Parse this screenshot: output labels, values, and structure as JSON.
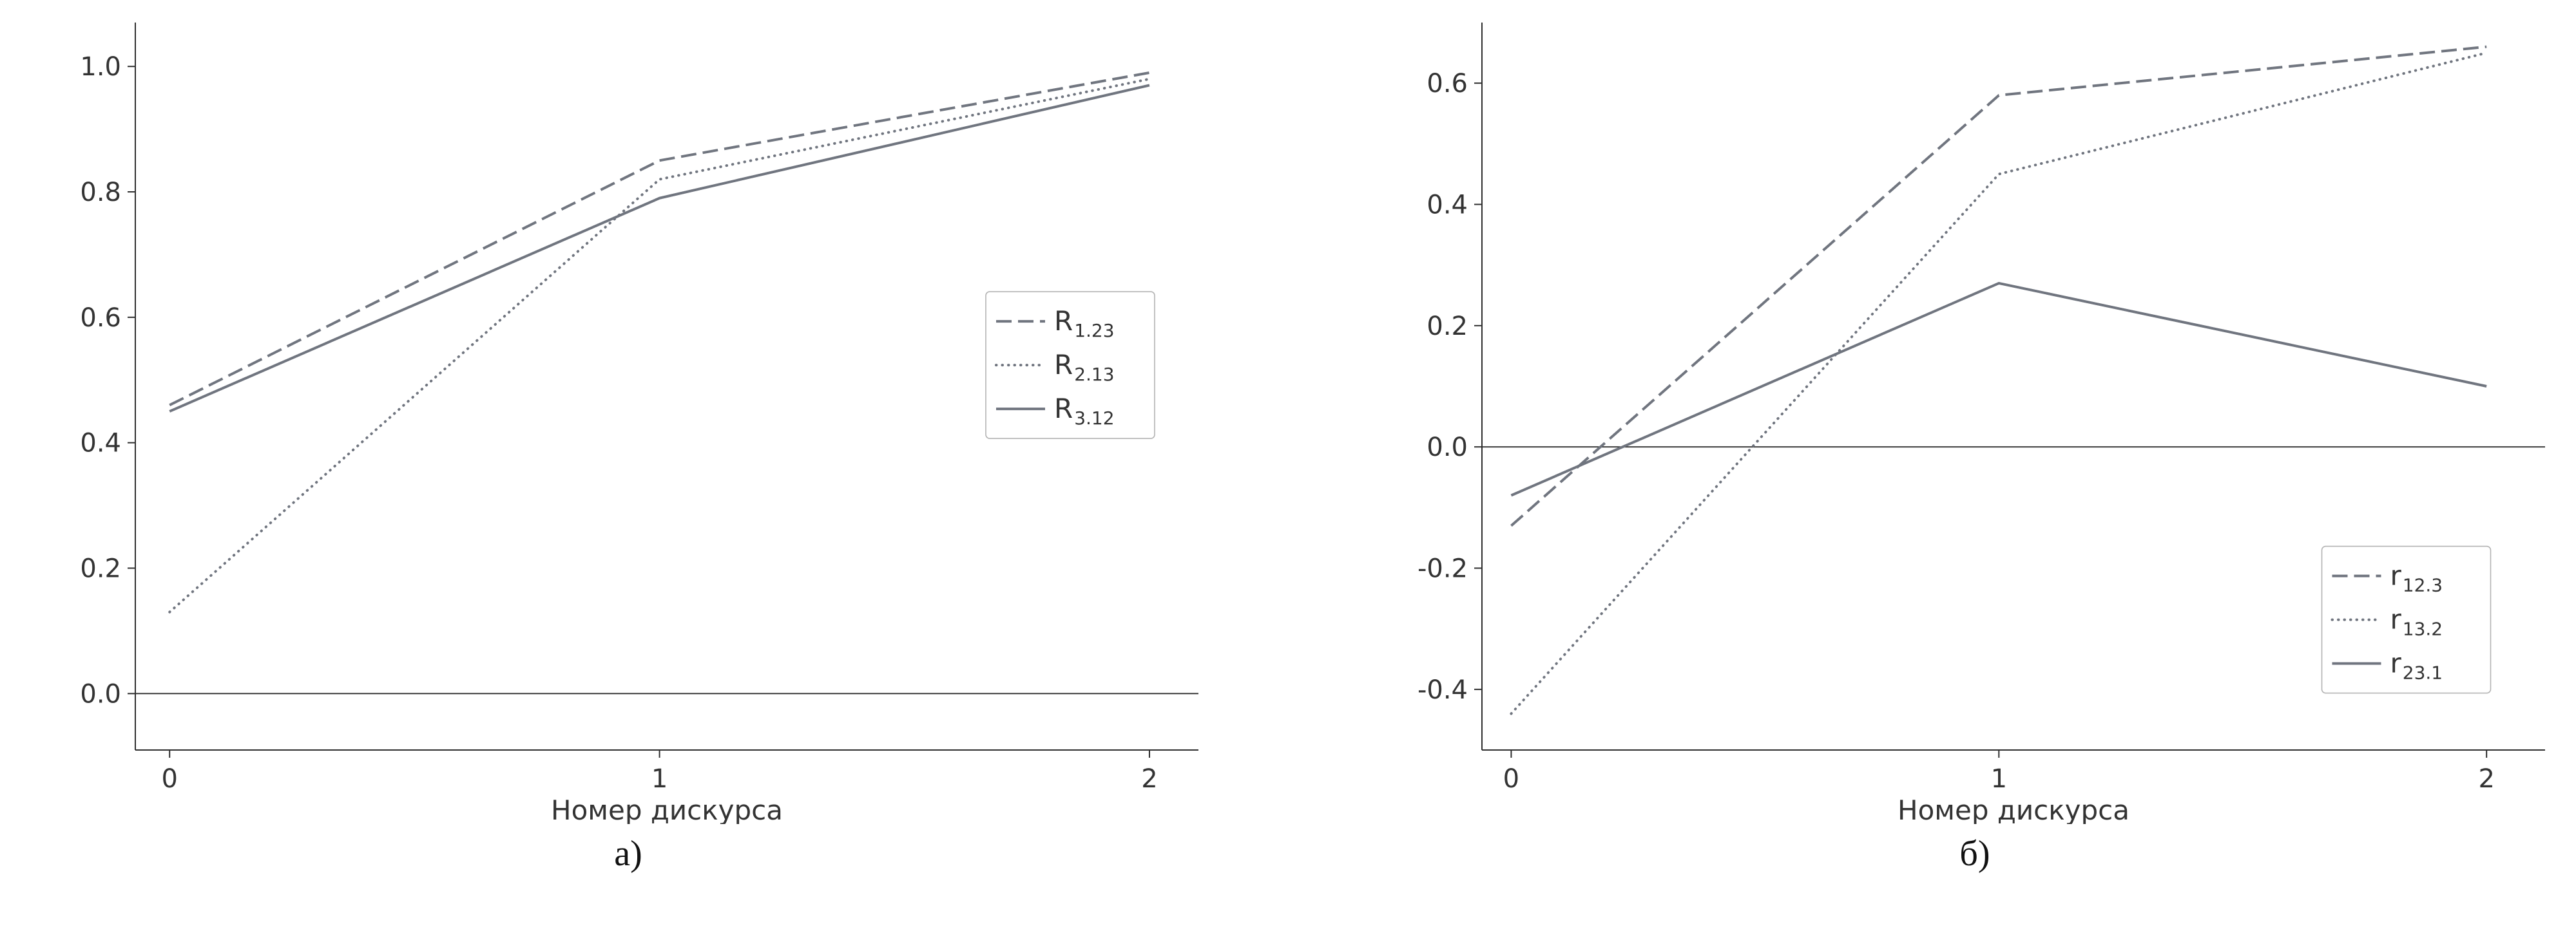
{
  "page": {
    "background": "#ffffff"
  },
  "figure": {
    "caption_a": "а)",
    "caption_b": "б)"
  },
  "chart_data": [
    {
      "type": "line",
      "title": "",
      "xlabel": "Номер дискурса",
      "ylabel": "",
      "x": [
        0,
        1,
        2
      ],
      "xticks": [
        0,
        1,
        2
      ],
      "yticks": [
        0.0,
        0.2,
        0.4,
        0.6,
        0.8,
        1.0
      ],
      "ytick_decimals": 1,
      "xlim": [
        -0.07,
        2.1
      ],
      "ylim": [
        -0.09,
        1.07
      ],
      "grid": false,
      "zero_line": true,
      "line_color": "#70757f",
      "axis_color": "#2f2f2f",
      "legend_position": "center-right",
      "legend_xy": {
        "x": 0.8,
        "y": 0.37
      },
      "series": [
        {
          "name": "R1.23",
          "label_main": "R",
          "label_sub": "1.23",
          "style": "dashed",
          "values": [
            0.46,
            0.85,
            0.99
          ]
        },
        {
          "name": "R2.13",
          "label_main": "R",
          "label_sub": "2.13",
          "style": "dotted",
          "values": [
            0.13,
            0.82,
            0.98
          ]
        },
        {
          "name": "R3.12",
          "label_main": "R",
          "label_sub": "3.12",
          "style": "solid",
          "values": [
            0.45,
            0.79,
            0.97
          ]
        }
      ],
      "caption": "а)"
    },
    {
      "type": "line",
      "title": "",
      "xlabel": "Номер дискурса",
      "ylabel": "",
      "x": [
        0,
        1,
        2
      ],
      "xticks": [
        0,
        1,
        2
      ],
      "yticks": [
        -0.4,
        -0.2,
        0.0,
        0.2,
        0.4,
        0.6
      ],
      "ytick_decimals": 1,
      "xlim": [
        -0.06,
        2.12
      ],
      "ylim": [
        -0.5,
        0.7
      ],
      "grid": false,
      "zero_line": true,
      "line_color": "#70757f",
      "axis_color": "#2f2f2f",
      "legend_position": "bottom-right",
      "legend_xy": {
        "x": 0.79,
        "y": 0.72
      },
      "series": [
        {
          "name": "r12.3",
          "label_main": "r",
          "label_sub": "12.3",
          "style": "dashed",
          "values": [
            -0.13,
            0.58,
            0.66
          ]
        },
        {
          "name": "r13.2",
          "label_main": "r",
          "label_sub": "13.2",
          "style": "dotted",
          "values": [
            -0.44,
            0.45,
            0.65
          ]
        },
        {
          "name": "r23.1",
          "label_main": "r",
          "label_sub": "23.1",
          "style": "solid",
          "values": [
            -0.08,
            0.27,
            0.1
          ]
        }
      ],
      "caption": "б)"
    }
  ]
}
